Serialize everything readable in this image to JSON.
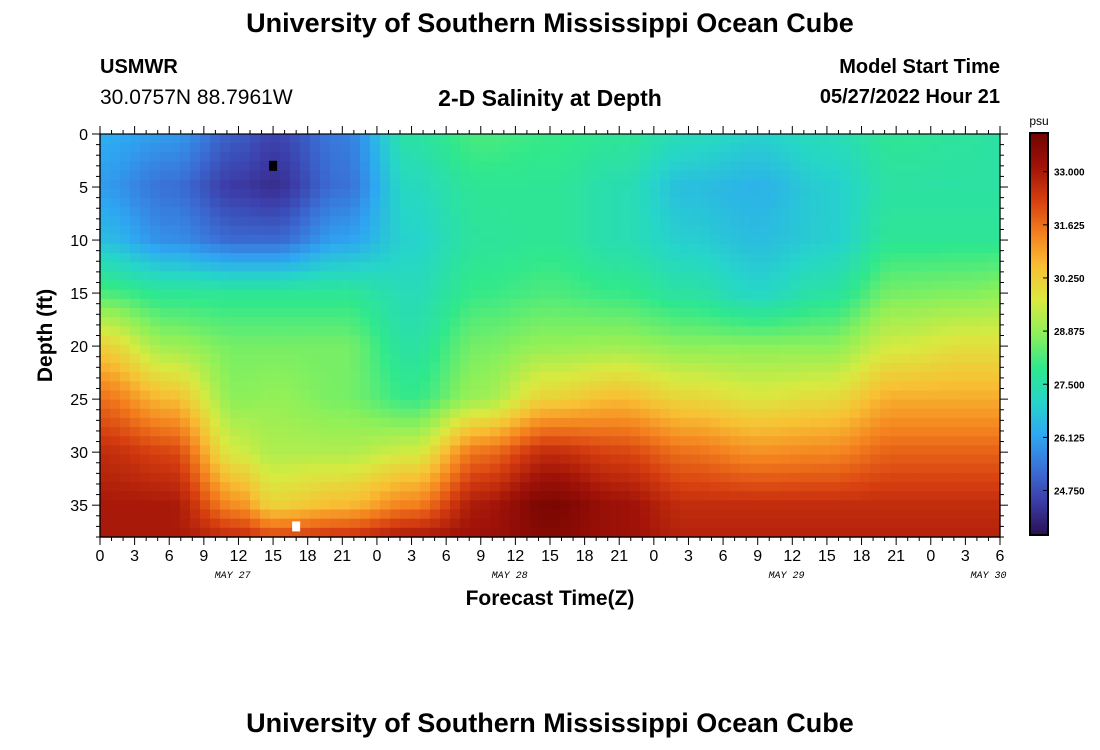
{
  "header": {
    "title": "University of Southern Mississippi Ocean Cube",
    "station": "USMWR",
    "coordinates": "30.0757N  88.7961W",
    "subtitle": "2-D Salinity at Depth",
    "model_start_label": "Model Start Time",
    "model_start_value": "05/27/2022 Hour 21"
  },
  "footer": {
    "title": "University of Southern Mississippi Ocean Cube"
  },
  "chart_data": {
    "type": "heatmap",
    "title": "2-D Salinity at Depth",
    "xlabel": "Forecast Time(Z)",
    "ylabel": "Depth (ft)",
    "x_range_hours": [
      0,
      78
    ],
    "y_range_ft": [
      0,
      38
    ],
    "y_reversed": true,
    "x_tick_labels": [
      "0",
      "3",
      "6",
      "9",
      "12",
      "15",
      "18",
      "21",
      "0",
      "3",
      "6",
      "9",
      "12",
      "15",
      "18",
      "21",
      "0",
      "3",
      "6",
      "9",
      "12",
      "15",
      "18",
      "21",
      "0",
      "3",
      "6"
    ],
    "x_day_labels": [
      {
        "label": "MAY 27",
        "hour": 11.5
      },
      {
        "label": "MAY 28",
        "hour": 35.5
      },
      {
        "label": "MAY 29",
        "hour": 59.5
      },
      {
        "label": "MAY 30",
        "hour": 77
      }
    ],
    "y_ticks": [
      0,
      5,
      10,
      15,
      20,
      25,
      30,
      35
    ],
    "colorbar": {
      "unit": "psu",
      "min": 23.6,
      "max": 34.0,
      "ticks": [
        "24.750",
        "26.125",
        "27.500",
        "28.875",
        "30.250",
        "31.625",
        "33.000"
      ],
      "colors": [
        "#2a1050",
        "#3c3ca8",
        "#3a72d8",
        "#2ea8f2",
        "#26d6c8",
        "#30e88c",
        "#8cf05a",
        "#d8ea40",
        "#f8c034",
        "#f4801e",
        "#d63e10",
        "#a01208",
        "#700400"
      ]
    },
    "markers": [
      {
        "name": "min-marker",
        "hour": 15,
        "depth": 3,
        "color": "#000000"
      },
      {
        "name": "max-marker",
        "hour": 17,
        "depth": 37,
        "color": "#ffffff"
      }
    ],
    "salinity_profiles": [
      {
        "hour": 0,
        "depths": [
          0,
          5,
          10,
          15,
          20,
          25,
          30,
          35,
          38
        ],
        "values": [
          26.3,
          26.0,
          26.6,
          28.2,
          30.2,
          31.6,
          32.6,
          33.0,
          33.0
        ]
      },
      {
        "hour": 6,
        "depths": [
          0,
          5,
          10,
          15,
          20,
          25,
          30,
          35,
          38
        ],
        "values": [
          26.0,
          25.3,
          25.8,
          27.8,
          29.0,
          30.6,
          32.2,
          33.0,
          33.0
        ]
      },
      {
        "hour": 12,
        "depths": [
          0,
          5,
          10,
          15,
          20,
          25,
          30,
          35,
          38
        ],
        "values": [
          25.0,
          24.4,
          25.2,
          27.8,
          28.6,
          28.8,
          29.6,
          31.2,
          32.6
        ]
      },
      {
        "hour": 15,
        "depths": [
          0,
          5,
          10,
          15,
          20,
          25,
          30,
          35,
          38
        ],
        "values": [
          24.6,
          24.2,
          25.2,
          27.8,
          28.6,
          28.9,
          29.2,
          30.2,
          32.2
        ]
      },
      {
        "hour": 21,
        "depths": [
          0,
          5,
          10,
          15,
          20,
          25,
          30,
          35,
          38
        ],
        "values": [
          25.5,
          25.3,
          26.1,
          27.8,
          28.6,
          28.6,
          29.2,
          30.6,
          32.5
        ]
      },
      {
        "hour": 27,
        "depths": [
          0,
          5,
          10,
          15,
          20,
          25,
          30,
          35,
          38
        ],
        "values": [
          27.6,
          27.2,
          27.0,
          27.3,
          27.6,
          28.0,
          29.6,
          31.4,
          33.0
        ]
      },
      {
        "hour": 33,
        "depths": [
          0,
          5,
          10,
          15,
          20,
          25,
          30,
          35,
          38
        ],
        "values": [
          28.2,
          27.8,
          27.7,
          28.0,
          28.6,
          29.0,
          31.6,
          33.0,
          33.2
        ]
      },
      {
        "hour": 39,
        "depths": [
          0,
          5,
          10,
          15,
          20,
          25,
          30,
          35,
          38
        ],
        "values": [
          28.0,
          27.8,
          27.8,
          28.2,
          28.9,
          30.2,
          32.6,
          33.8,
          33.6
        ]
      },
      {
        "hour": 45,
        "depths": [
          0,
          5,
          10,
          15,
          20,
          25,
          30,
          35,
          38
        ],
        "values": [
          27.8,
          27.4,
          27.4,
          28.0,
          29.0,
          30.6,
          32.2,
          33.2,
          33.2
        ]
      },
      {
        "hour": 51,
        "depths": [
          0,
          5,
          10,
          15,
          20,
          25,
          30,
          35,
          38
        ],
        "values": [
          27.3,
          26.6,
          26.9,
          27.6,
          28.8,
          30.1,
          31.6,
          32.6,
          32.8
        ]
      },
      {
        "hour": 57,
        "depths": [
          0,
          5,
          10,
          15,
          20,
          25,
          30,
          35,
          38
        ],
        "values": [
          27.0,
          26.4,
          26.6,
          27.1,
          28.8,
          29.8,
          31.2,
          32.6,
          32.8
        ]
      },
      {
        "hour": 63,
        "depths": [
          0,
          5,
          10,
          15,
          20,
          25,
          30,
          35,
          38
        ],
        "values": [
          27.3,
          26.9,
          26.9,
          27.6,
          28.8,
          30.0,
          31.3,
          32.6,
          32.8
        ]
      },
      {
        "hour": 69,
        "depths": [
          0,
          5,
          10,
          15,
          20,
          25,
          30,
          35,
          38
        ],
        "values": [
          27.8,
          27.6,
          27.8,
          28.6,
          29.6,
          30.8,
          31.8,
          32.6,
          32.8
        ]
      },
      {
        "hour": 75,
        "depths": [
          0,
          5,
          10,
          15,
          20,
          25,
          30,
          35,
          38
        ],
        "values": [
          27.7,
          27.6,
          27.8,
          28.7,
          29.9,
          30.8,
          31.8,
          32.6,
          32.8
        ]
      },
      {
        "hour": 78,
        "depths": [
          0,
          5,
          10,
          15,
          20,
          25,
          30,
          35,
          38
        ],
        "values": [
          27.6,
          27.6,
          27.8,
          28.8,
          29.9,
          30.8,
          31.8,
          32.6,
          32.8
        ]
      }
    ]
  }
}
